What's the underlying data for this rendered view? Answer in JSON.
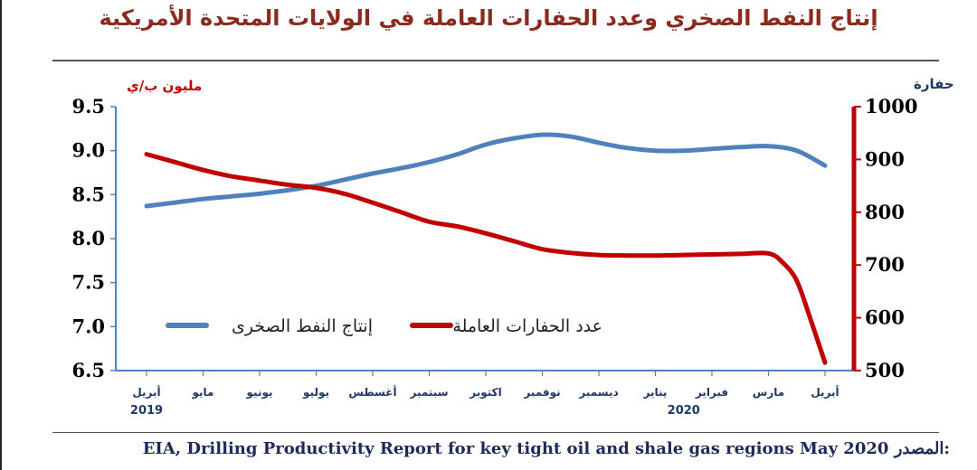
{
  "title": "إنتاج النفط الصخري وعدد الحفارات العاملة في الولايات المتحدة الأمريكية",
  "source": {
    "label": "المصدر:",
    "text": "EIA, Drilling Productivity Report for key tight oil and shale gas regions May 2020"
  },
  "colors": {
    "oil": "#4f81bd",
    "rigs": "#c00000",
    "title": "#8b2a1f",
    "source_text": "#1e2a5a"
  },
  "chart_data": {
    "type": "line",
    "categories": [
      "أبريل",
      "مايو",
      "يونيو",
      "يوليو",
      "أغسطس",
      "سبتمبر",
      "اكتوبر",
      "نوفمبر",
      "ديسمبر",
      "يناير",
      "فبراير",
      "مارس",
      "أبريل"
    ],
    "year_labels": [
      {
        "text": "2019",
        "category_index": 0
      },
      {
        "text": "2020",
        "category_index": 9.5
      }
    ],
    "y_left": {
      "label": "مليون ب/ي",
      "range": [
        6.5,
        9.5
      ],
      "ticks": [
        9.5,
        9.0,
        8.5,
        8.0,
        7.5,
        7.0,
        6.5
      ],
      "tick_labels": [
        "9.5",
        "9.0",
        "8.5",
        "8.0",
        "7.5",
        "7.0",
        "6.5"
      ]
    },
    "y_right": {
      "label": "حفارة",
      "range": [
        500,
        1000
      ],
      "ticks": [
        1000,
        900,
        800,
        700,
        600,
        500
      ],
      "tick_labels": [
        "1000",
        "900",
        "800",
        "700",
        "600",
        "500"
      ]
    },
    "series": [
      {
        "name": "إنتاج النفط الصخرى",
        "axis": "left",
        "x": [
          0,
          0.5,
          1,
          1.5,
          2,
          2.5,
          3,
          3.5,
          4,
          4.5,
          5,
          5.5,
          6,
          6.5,
          7,
          7.5,
          8,
          8.5,
          9,
          9.5,
          10,
          10.5,
          11,
          11.5,
          12
        ],
        "values": [
          8.37,
          8.41,
          8.45,
          8.48,
          8.51,
          8.55,
          8.6,
          8.67,
          8.74,
          8.8,
          8.87,
          8.96,
          9.07,
          9.14,
          9.18,
          9.16,
          9.09,
          9.03,
          9.0,
          9.0,
          9.02,
          9.04,
          9.05,
          9.0,
          8.83
        ]
      },
      {
        "name": "عدد الحفارات العاملة",
        "axis": "right",
        "x": [
          0,
          0.5,
          1,
          1.5,
          2,
          2.5,
          3,
          3.5,
          4,
          4.5,
          5,
          5.5,
          6,
          6.5,
          7,
          7.5,
          8,
          8.5,
          9,
          9.5,
          10,
          10.5,
          11,
          11.25,
          11.5,
          11.75,
          12
        ],
        "values": [
          910,
          895,
          880,
          868,
          860,
          852,
          846,
          835,
          818,
          800,
          782,
          773,
          760,
          745,
          730,
          723,
          719,
          718,
          718,
          719,
          720,
          721,
          722,
          705,
          670,
          595,
          515
        ]
      }
    ],
    "legend_placement": "center"
  }
}
